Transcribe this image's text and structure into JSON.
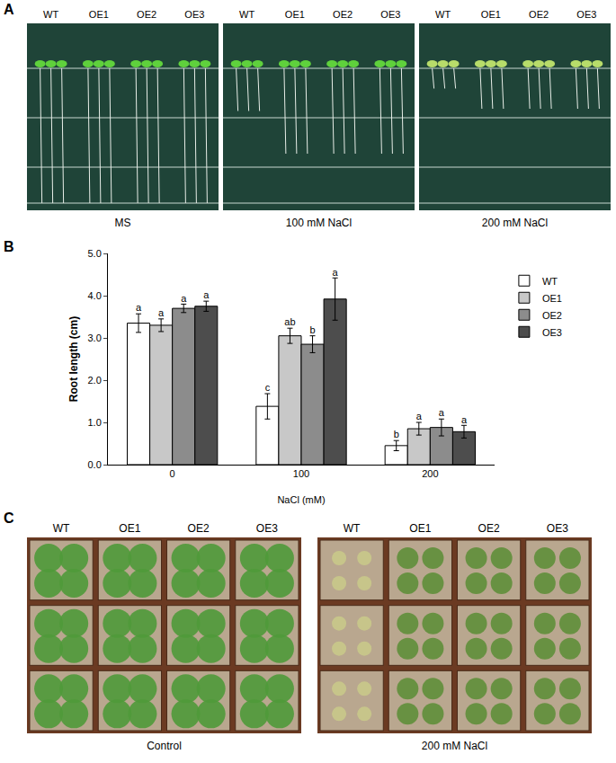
{
  "figure": {
    "panel_a": {
      "label": "A",
      "images": [
        {
          "caption": "MS",
          "lines": [
            "WT",
            "OE1",
            "OE2",
            "OE3"
          ]
        },
        {
          "caption": "100 mM NaCl",
          "lines": [
            "WT",
            "OE1",
            "OE2",
            "OE3"
          ]
        },
        {
          "caption": "200 mM NaCl",
          "lines": [
            "WT",
            "OE1",
            "OE2",
            "OE3"
          ]
        }
      ]
    },
    "panel_b": {
      "label": "B"
    },
    "panel_c": {
      "label": "C",
      "images": [
        {
          "caption": "Control",
          "lines": [
            "WT",
            "OE1",
            "OE2",
            "OE3"
          ]
        },
        {
          "caption": "200 mM NaCl",
          "lines": [
            "WT",
            "OE1",
            "OE2",
            "OE3"
          ]
        }
      ]
    }
  },
  "chart_data": {
    "type": "bar",
    "x_label": "NaCl (mM)",
    "y_label": "Root length (cm)",
    "categories": [
      "0",
      "100",
      "200"
    ],
    "series": [
      {
        "name": "WT",
        "color": "#ffffff",
        "values": [
          3.35,
          1.38,
          0.45
        ],
        "errors": [
          0.22,
          0.3,
          0.12
        ],
        "letters": [
          "a",
          "c",
          "b"
        ]
      },
      {
        "name": "OE1",
        "color": "#c8c8c8",
        "values": [
          3.3,
          3.05,
          0.85
        ],
        "errors": [
          0.15,
          0.18,
          0.15
        ],
        "letters": [
          "a",
          "ab",
          "a"
        ]
      },
      {
        "name": "OE2",
        "color": "#8c8c8c",
        "values": [
          3.7,
          2.85,
          0.88
        ],
        "errors": [
          0.1,
          0.2,
          0.2
        ],
        "letters": [
          "a",
          "b",
          "a"
        ]
      },
      {
        "name": "OE3",
        "color": "#4d4d4d",
        "values": [
          3.75,
          3.92,
          0.78
        ],
        "errors": [
          0.12,
          0.5,
          0.15
        ],
        "letters": [
          "a",
          "a",
          "a"
        ]
      }
    ],
    "ylim": [
      0,
      5
    ],
    "yticks": [
      {
        "value": 0,
        "label": "0.0"
      },
      {
        "value": 1,
        "label": "1.0"
      },
      {
        "value": 2,
        "label": "2.0"
      },
      {
        "value": 3,
        "label": "3.0"
      },
      {
        "value": 4,
        "label": "4.0"
      },
      {
        "value": 5,
        "label": "5.0"
      }
    ],
    "grid": false,
    "legend": "right"
  }
}
